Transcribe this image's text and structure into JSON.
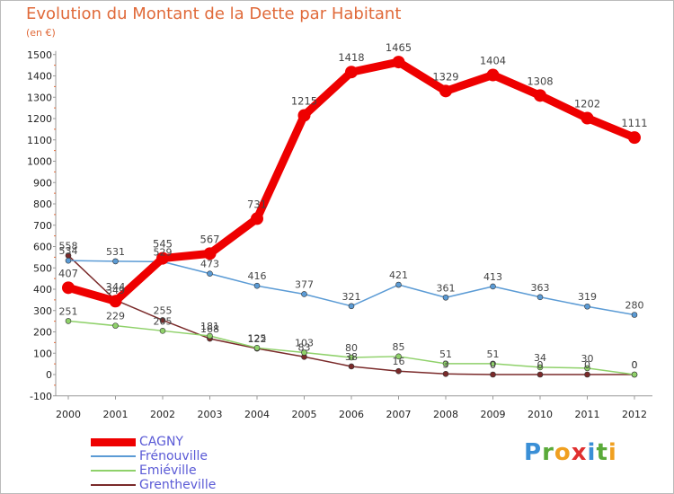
{
  "title": "Evolution du Montant de la Dette par Habitant",
  "unit": "(en €)",
  "logo": [
    {
      "ch": "P",
      "color": "#3a8fd6"
    },
    {
      "ch": "r",
      "color": "#5aaa3a"
    },
    {
      "ch": "o",
      "color": "#f0a020"
    },
    {
      "ch": "x",
      "color": "#e03030"
    },
    {
      "ch": "i",
      "color": "#3a8fd6"
    },
    {
      "ch": "t",
      "color": "#5aaa3a"
    },
    {
      "ch": "i",
      "color": "#f0a020"
    }
  ],
  "chart_data": {
    "type": "line",
    "title": "Evolution du Montant de la Dette par Habitant",
    "ylabel": "(en €)",
    "xlabel": "",
    "x": [
      "2000",
      "2001",
      "2002",
      "2003",
      "2004",
      "2005",
      "2006",
      "2007",
      "2008",
      "2009",
      "2010",
      "2011",
      "2012"
    ],
    "ylim": [
      -100,
      1500
    ],
    "yticks": [
      -100,
      0,
      100,
      200,
      300,
      400,
      500,
      600,
      700,
      800,
      900,
      1000,
      1100,
      1200,
      1300,
      1400,
      1500
    ],
    "grid": false,
    "legend_position": "bottom-left",
    "series": [
      {
        "name": "CAGNY",
        "color": "#ee0000",
        "values": [
          407,
          344,
          545,
          567,
          731,
          1215,
          1418,
          1465,
          1329,
          1404,
          1308,
          1202,
          1111
        ],
        "labels": [
          "407",
          "344",
          "545",
          "567",
          "731",
          "1215",
          "1418",
          "1465",
          "1329",
          "1404",
          "1308",
          "1202",
          "1111"
        ]
      },
      {
        "name": "Frénouville",
        "color": "#5b9bd5",
        "values": [
          534,
          531,
          529,
          473,
          416,
          377,
          321,
          421,
          361,
          413,
          363,
          319,
          280
        ],
        "labels": [
          "534",
          "531",
          "529",
          "473",
          "416",
          "377",
          "321",
          "421",
          "361",
          "413",
          "363",
          "319",
          "280"
        ]
      },
      {
        "name": "Emiéville",
        "color": "#8fd16a",
        "values": [
          251,
          229,
          205,
          181,
          125,
          103,
          80,
          85,
          51,
          51,
          34,
          30,
          0
        ],
        "labels": [
          "251",
          "229",
          "205",
          "181",
          "125",
          "103",
          "80",
          "85",
          "51",
          "51",
          "34",
          "30",
          "0"
        ]
      },
      {
        "name": "Grentheville",
        "color": "#7a2a2a",
        "values": [
          558,
          349,
          255,
          168,
          122,
          83,
          38,
          16,
          3,
          0,
          0,
          0,
          0
        ],
        "labels": [
          "558",
          "349",
          "255",
          "168",
          "122",
          "83",
          "38",
          "16",
          "3",
          "0",
          "0",
          "0",
          "0"
        ]
      }
    ]
  }
}
